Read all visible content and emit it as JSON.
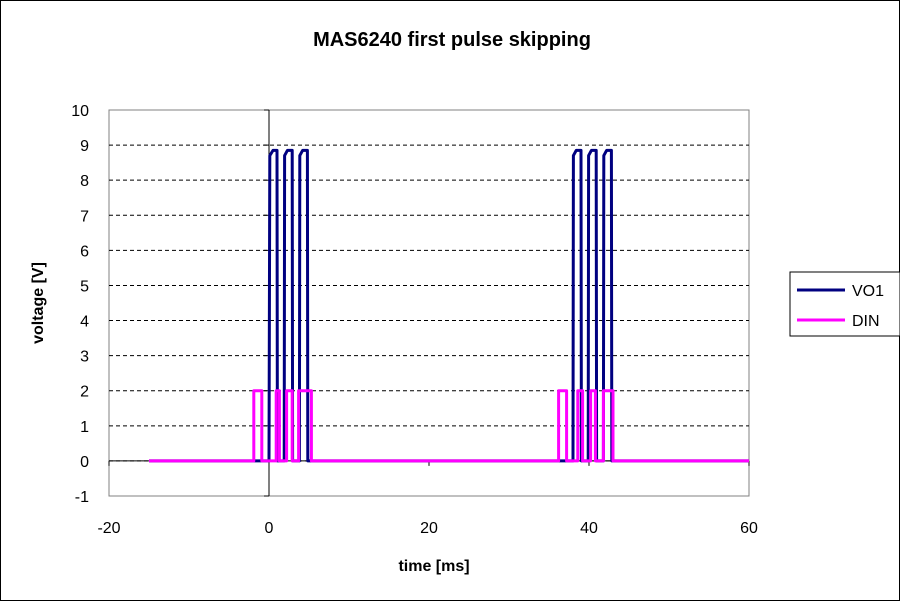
{
  "chart_data": {
    "type": "line",
    "title": "MAS6240 first pulse skipping",
    "xlabel": "time [ms]",
    "ylabel": "voltage [V]",
    "xlim": [
      -20,
      60
    ],
    "ylim": [
      -1,
      10
    ],
    "xticks": [
      -20,
      0,
      20,
      40,
      60
    ],
    "yticks": [
      -1,
      0,
      1,
      2,
      3,
      4,
      5,
      6,
      7,
      8,
      9,
      10
    ],
    "grid": "horizontal dashed",
    "legend_position": "right",
    "series": [
      {
        "name": "VO1",
        "color": "#000080",
        "points": [
          [
            -15,
            0
          ],
          [
            0,
            0
          ],
          [
            0.1,
            8.7
          ],
          [
            0.5,
            8.85
          ],
          [
            1.0,
            8.85
          ],
          [
            1.05,
            0
          ],
          [
            1.9,
            0
          ],
          [
            1.95,
            8.7
          ],
          [
            2.3,
            8.85
          ],
          [
            2.9,
            8.85
          ],
          [
            2.95,
            0
          ],
          [
            3.8,
            0
          ],
          [
            3.85,
            8.7
          ],
          [
            4.2,
            8.85
          ],
          [
            4.8,
            8.85
          ],
          [
            4.85,
            0
          ],
          [
            38,
            0
          ],
          [
            38.05,
            8.7
          ],
          [
            38.4,
            8.85
          ],
          [
            39.0,
            8.85
          ],
          [
            39.05,
            0
          ],
          [
            39.9,
            0
          ],
          [
            39.95,
            8.7
          ],
          [
            40.3,
            8.85
          ],
          [
            40.9,
            8.85
          ],
          [
            40.95,
            0
          ],
          [
            41.8,
            0
          ],
          [
            41.85,
            8.7
          ],
          [
            42.2,
            8.85
          ],
          [
            42.8,
            8.85
          ],
          [
            42.85,
            0
          ],
          [
            60,
            0
          ]
        ]
      },
      {
        "name": "DIN",
        "color": "#ff00ff",
        "points": [
          [
            -15,
            0
          ],
          [
            -1.9,
            0
          ],
          [
            -1.9,
            2
          ],
          [
            -0.9,
            2
          ],
          [
            -0.9,
            0
          ],
          [
            0.9,
            0
          ],
          [
            0.9,
            2
          ],
          [
            1.3,
            2
          ],
          [
            1.3,
            0
          ],
          [
            2.2,
            0
          ],
          [
            2.2,
            2
          ],
          [
            2.9,
            2
          ],
          [
            2.9,
            0
          ],
          [
            3.7,
            0
          ],
          [
            3.7,
            2
          ],
          [
            5.3,
            2
          ],
          [
            5.3,
            0
          ],
          [
            36.2,
            0
          ],
          [
            36.2,
            2
          ],
          [
            37.2,
            2
          ],
          [
            37.2,
            0
          ],
          [
            38.6,
            0
          ],
          [
            38.6,
            2
          ],
          [
            39.2,
            2
          ],
          [
            39.2,
            0
          ],
          [
            40.2,
            0
          ],
          [
            40.2,
            2
          ],
          [
            40.8,
            2
          ],
          [
            40.8,
            0
          ],
          [
            41.8,
            0
          ],
          [
            41.8,
            2
          ],
          [
            43.0,
            2
          ],
          [
            43.0,
            0
          ],
          [
            60,
            0
          ]
        ]
      }
    ]
  }
}
